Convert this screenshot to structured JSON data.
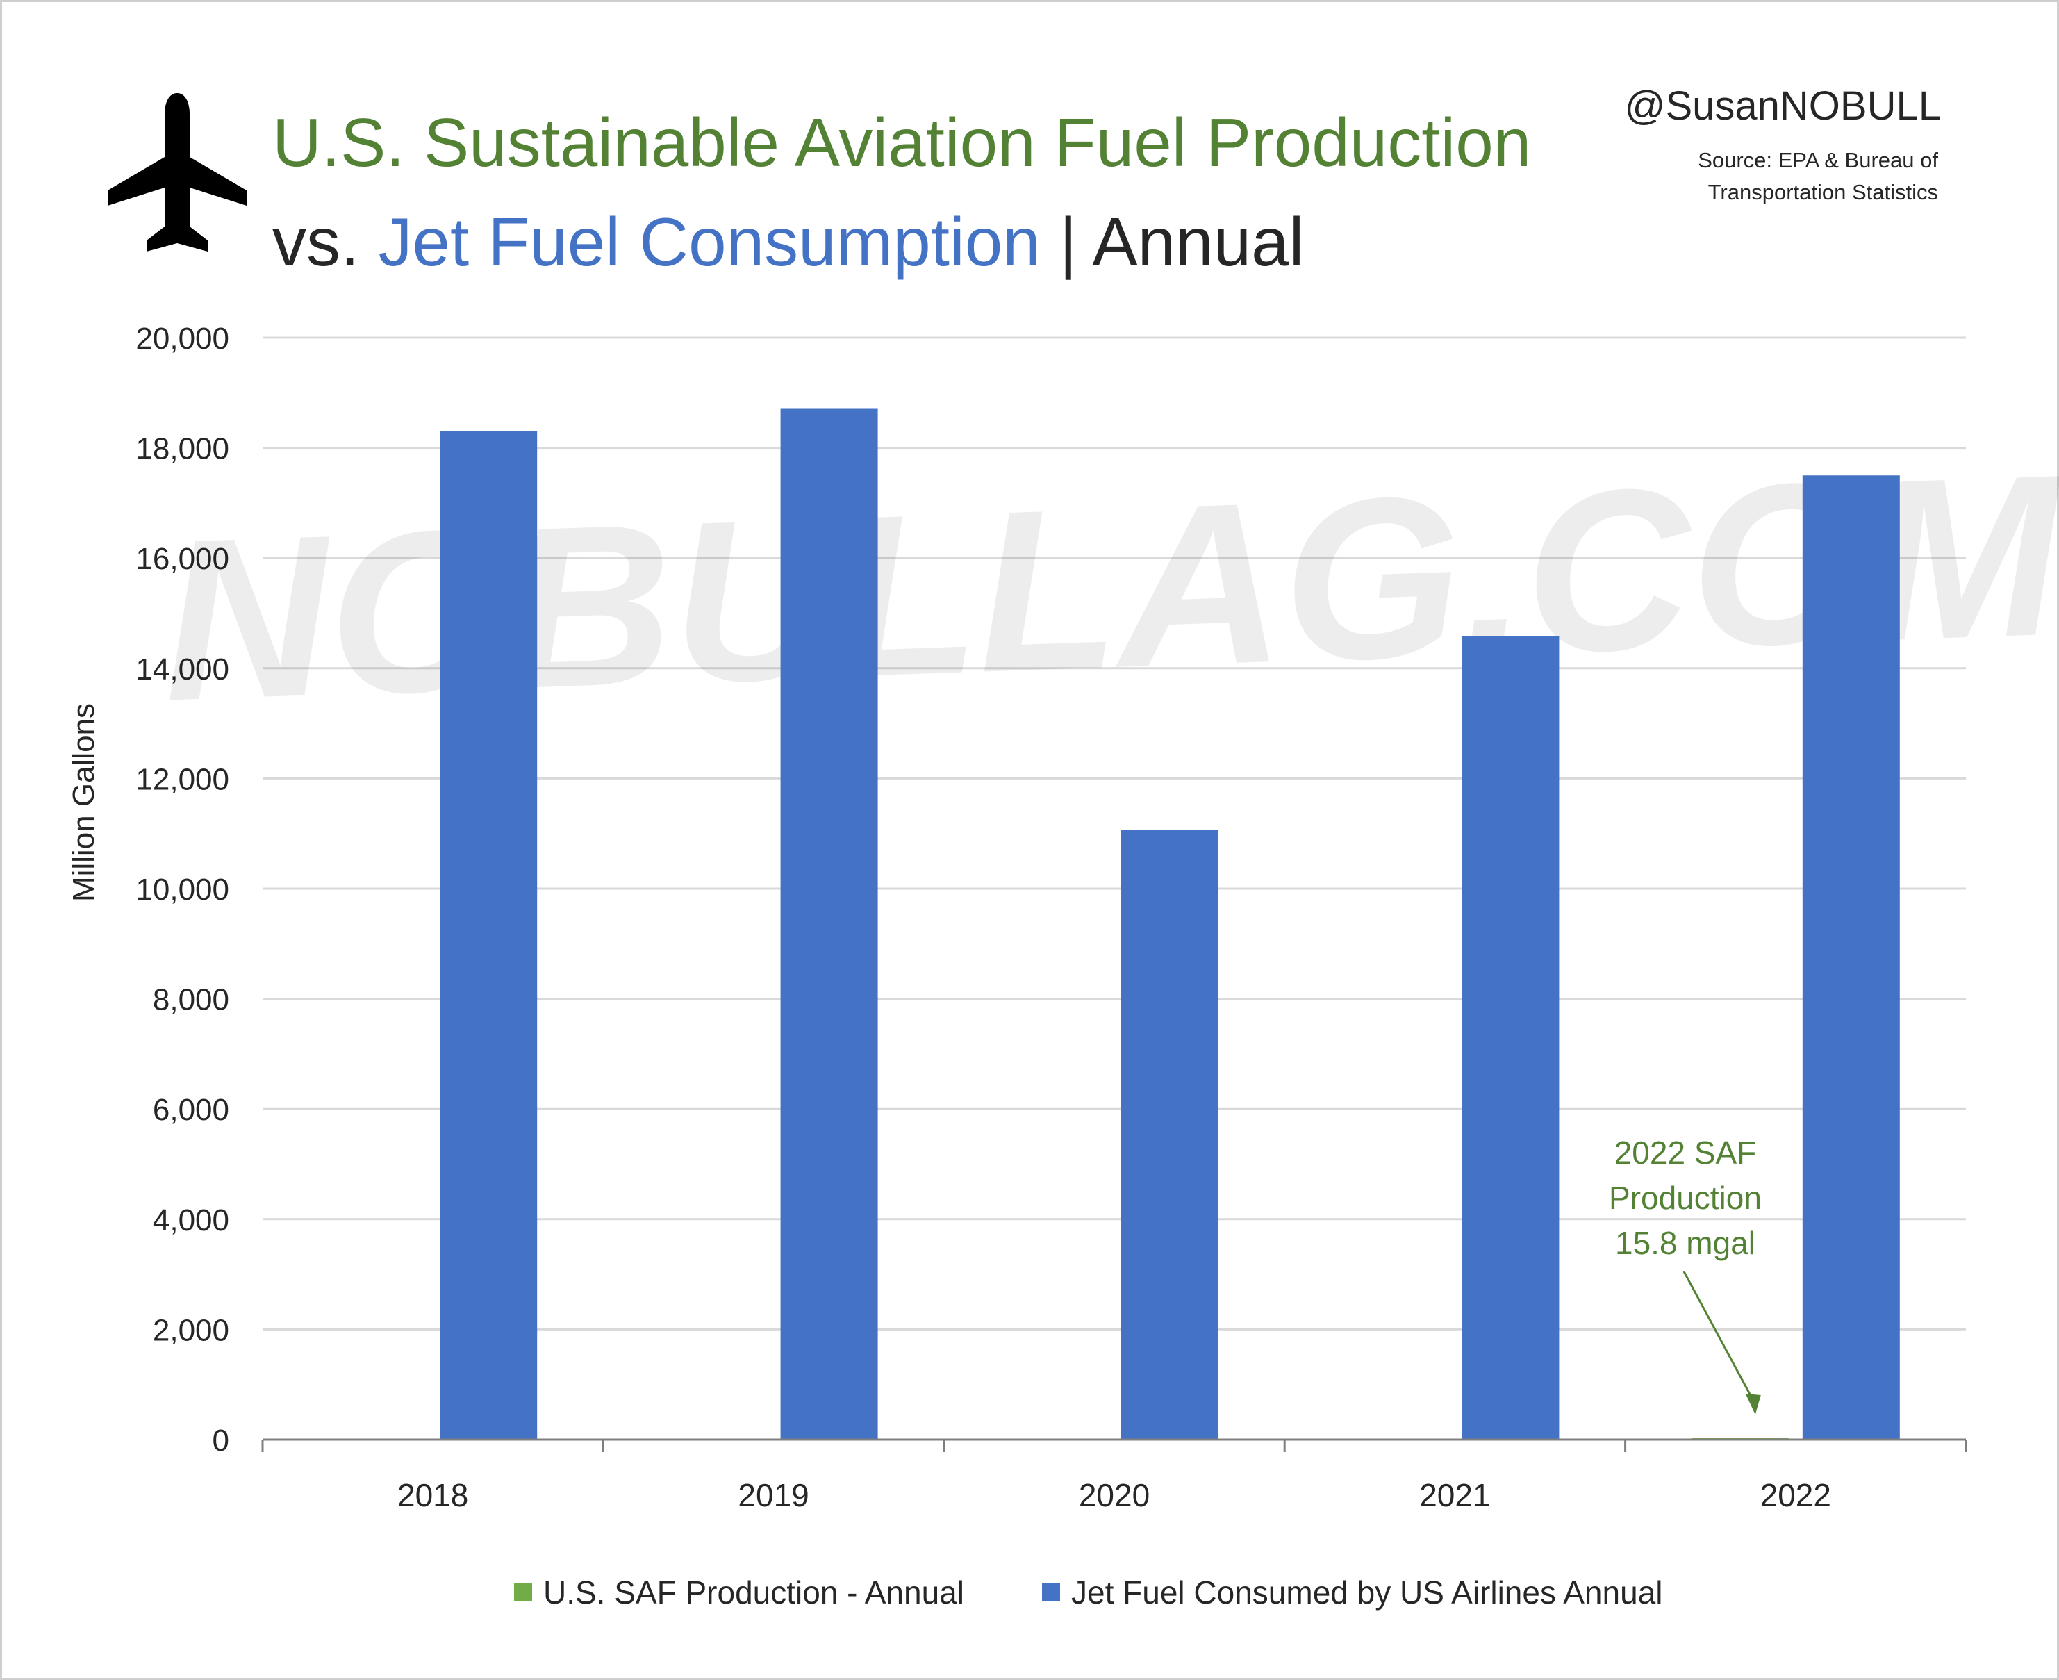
{
  "header": {
    "title_line1": "U.S. Sustainable Aviation Fuel Production",
    "title_line2_prefix": "vs. ",
    "title_line2_blue": "Jet Fuel Consumption",
    "title_line2_suffix": " | Annual",
    "handle": "@SusanNOBULL",
    "source_line1": "Source: EPA & Bureau of",
    "source_line2": "Transportation Statistics",
    "icon": "airplane-icon"
  },
  "watermark": "NOBULLAG.COM",
  "colors": {
    "saf": "#70ad47",
    "jet": "#4472c4",
    "title_green": "#548235",
    "annotation": "#548235",
    "grid": "#d9d9d9"
  },
  "chart_data": {
    "type": "bar",
    "categories": [
      "2018",
      "2019",
      "2020",
      "2021",
      "2022"
    ],
    "series": [
      {
        "name": "U.S. SAF Production - Annual",
        "values": [
          0,
          0,
          0,
          0,
          15.8
        ]
      },
      {
        "name": "Jet Fuel Consumed by US Airlines Annual",
        "values": [
          18300,
          18720,
          11060,
          14590,
          17500
        ]
      }
    ],
    "ylabel": "Million Gallons",
    "xlabel": "",
    "ylim": [
      0,
      20000
    ],
    "yticks": [
      0,
      2000,
      4000,
      6000,
      8000,
      10000,
      12000,
      14000,
      16000,
      18000,
      20000
    ],
    "ytick_labels": [
      "0",
      "2,000",
      "4,000",
      "6,000",
      "8,000",
      "10,000",
      "12,000",
      "14,000",
      "16,000",
      "18,000",
      "20,000"
    ],
    "grid": true,
    "legend": "bottom",
    "annotation": {
      "lines": [
        "2022 SAF",
        "Production",
        "15.8 mgal"
      ],
      "category": "2022",
      "series": "U.S. SAF Production - Annual"
    }
  }
}
